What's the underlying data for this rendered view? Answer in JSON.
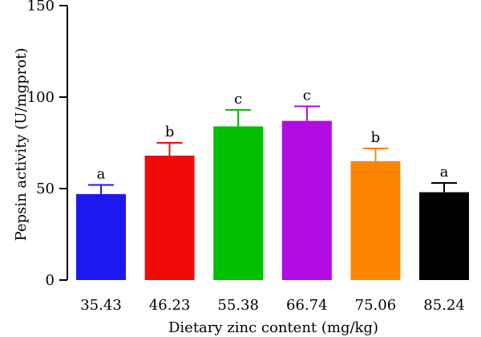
{
  "chart_data": {
    "type": "bar",
    "categories": [
      "35.43",
      "46.23",
      "55.38",
      "66.74",
      "75.06",
      "85.24"
    ],
    "values": [
      47,
      68,
      84,
      87,
      65,
      48
    ],
    "error": [
      5,
      7,
      9,
      8,
      7,
      5
    ],
    "letters": [
      "a",
      "b",
      "c",
      "c",
      "b",
      "a"
    ],
    "colors": [
      "#1d18f0",
      "#f20a0a",
      "#00bf00",
      "#b20be3",
      "#ff8500",
      "#000000"
    ],
    "xlabel": "Dietary zinc content (mg/kg)",
    "ylabel": "Pepsin activity (U/mgprot)",
    "ylim": [
      0,
      150
    ],
    "yticks": [
      "0",
      "50",
      "100",
      "150"
    ],
    "grid": false
  }
}
